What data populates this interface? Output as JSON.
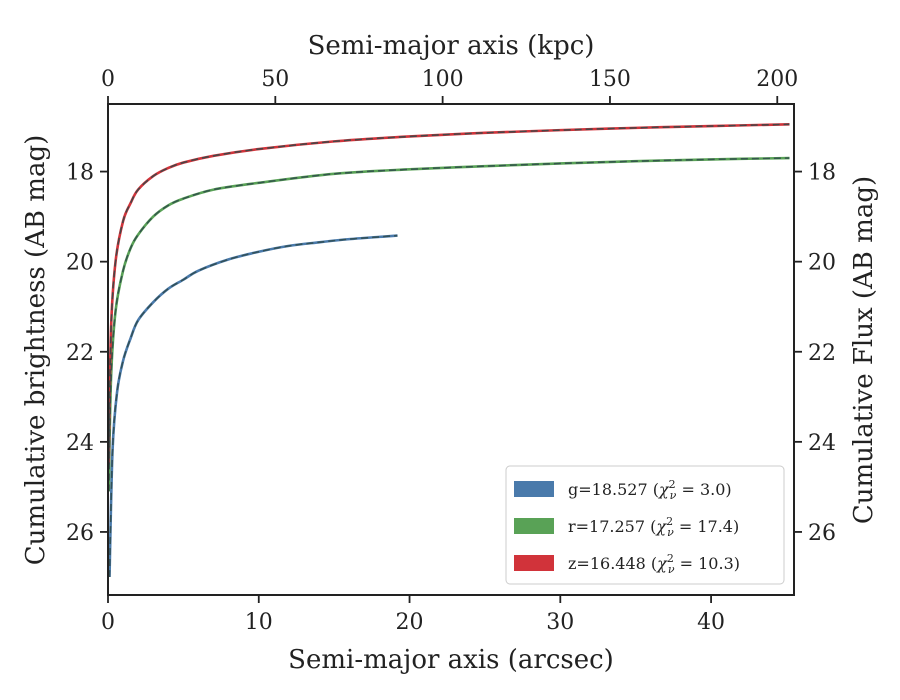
{
  "chart_data": {
    "type": "line",
    "title": "",
    "xlabel": "Semi-major axis (arcsec)",
    "ylabel": "Cumulative brightness (AB mag)",
    "top_xlabel": "Semi-major axis (kpc)",
    "right_ylabel": "Cumulative Flux (AB mag)",
    "xlim": [
      0,
      45.5
    ],
    "ylim": [
      27.4,
      16.5
    ],
    "y_inverted": true,
    "top_xlim": [
      0,
      205
    ],
    "x_ticks": [
      "0",
      "10",
      "20",
      "30",
      "40"
    ],
    "y_ticks": [
      "18",
      "20",
      "22",
      "24",
      "26"
    ],
    "top_x_ticks": [
      "0",
      "50",
      "100",
      "150",
      "200"
    ],
    "grid": false,
    "legend_position": "lower-right",
    "legend_entries": [
      {
        "band": "g",
        "text": "g=18.527 (",
        "chi_label": "χ",
        "chi_sup": "2",
        "chi_sub": "ν",
        "value": " = 3.0)",
        "color": "#4a7aab"
      },
      {
        "band": "r",
        "text": "r=17.257 (",
        "chi_label": "χ",
        "chi_sup": "2",
        "chi_sub": "ν",
        "value": " = 17.4)",
        "color": "#59a256"
      },
      {
        "band": "z",
        "text": "z=16.448 (",
        "chi_label": "χ",
        "chi_sup": "2",
        "chi_sub": "ν",
        "value": " = 10.3)",
        "color": "#d1333a"
      }
    ],
    "series": [
      {
        "name": "g",
        "color": "#4a7aab",
        "x": [
          0.1,
          0.3,
          0.6,
          1.0,
          1.5,
          2.0,
          3.0,
          4.0,
          5.0,
          6.0,
          8.0,
          10.0,
          12.0,
          14.0,
          16.0,
          18.0,
          19.2
        ],
        "y": [
          27.0,
          24.2,
          22.9,
          22.2,
          21.7,
          21.3,
          20.9,
          20.6,
          20.4,
          20.2,
          19.95,
          19.78,
          19.65,
          19.57,
          19.5,
          19.45,
          19.42
        ]
      },
      {
        "name": "r",
        "color": "#59a256",
        "x": [
          0.05,
          0.2,
          0.5,
          1.0,
          1.5,
          2.0,
          3.0,
          4.0,
          5.0,
          7.0,
          10.0,
          15.0,
          20.0,
          25.0,
          30.0,
          35.0,
          40.0,
          45.2
        ],
        "y": [
          25.1,
          22.6,
          21.1,
          20.2,
          19.7,
          19.4,
          19.0,
          18.75,
          18.6,
          18.4,
          18.25,
          18.05,
          17.95,
          17.88,
          17.82,
          17.77,
          17.73,
          17.7
        ]
      },
      {
        "name": "z",
        "color": "#d1333a",
        "x": [
          0.05,
          0.2,
          0.5,
          1.0,
          1.5,
          2.0,
          3.0,
          4.0,
          5.0,
          7.0,
          10.0,
          15.0,
          20.0,
          25.0,
          30.0,
          35.0,
          40.0,
          45.2
        ],
        "y": [
          24.5,
          21.5,
          20.0,
          19.1,
          18.7,
          18.4,
          18.1,
          17.92,
          17.8,
          17.65,
          17.5,
          17.33,
          17.22,
          17.14,
          17.08,
          17.03,
          16.99,
          16.95
        ]
      }
    ]
  }
}
